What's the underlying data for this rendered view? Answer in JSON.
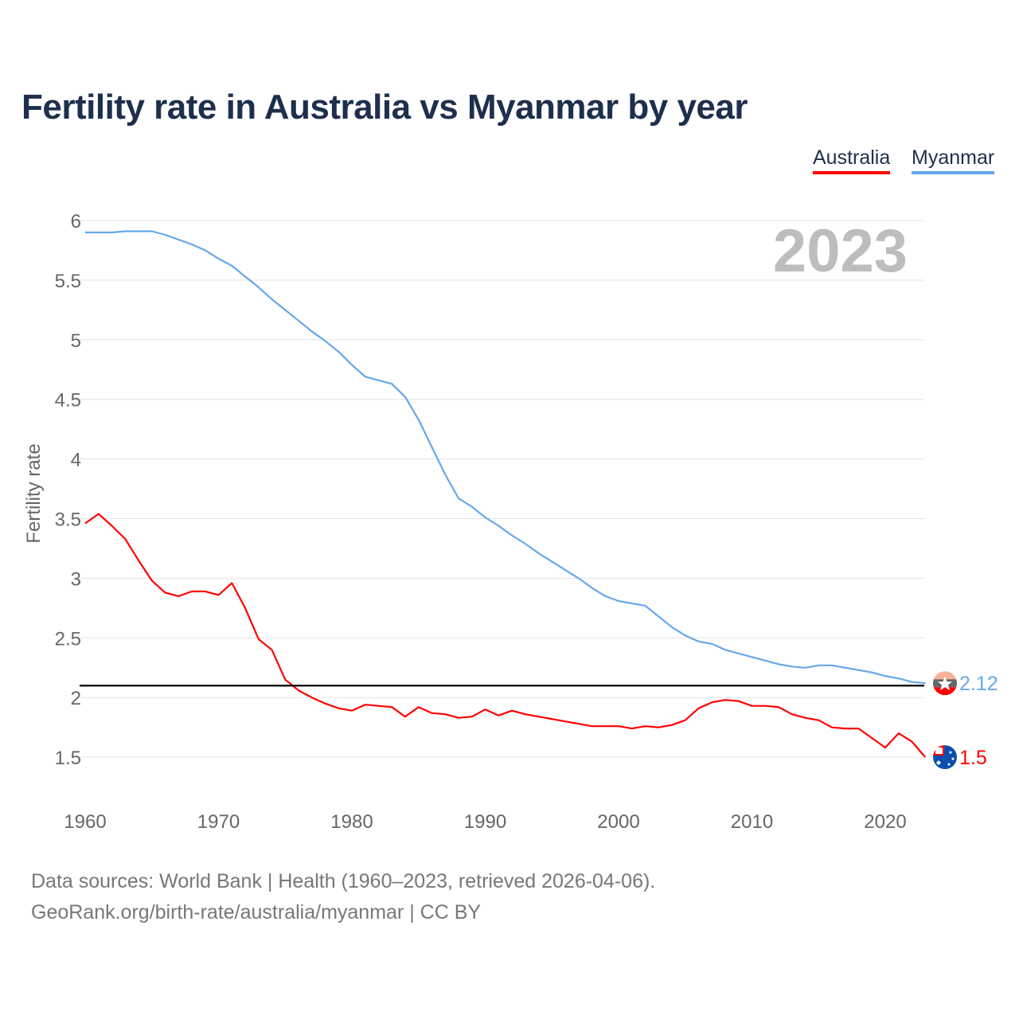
{
  "chart_data": {
    "type": "line",
    "title": "Fertility rate in Australia vs Myanmar by year",
    "xlabel": "",
    "ylabel": "Fertility rate",
    "year_label": "2023",
    "xlim": [
      1960,
      2023
    ],
    "ylim": [
      1.2,
      6.1
    ],
    "x_ticks": [
      1960,
      1970,
      1980,
      1990,
      2000,
      2010,
      2020
    ],
    "y_ticks": [
      1.5,
      2,
      2.5,
      3,
      3.5,
      4,
      4.5,
      5,
      5.5,
      6
    ],
    "y_tick_labels": [
      "1.5",
      "2",
      "2.5",
      "3",
      "3.5",
      "4",
      "4.5",
      "5",
      "5.5",
      "6"
    ],
    "grid": true,
    "legend_placement": "top-right",
    "reference_line": 2.1,
    "x": [
      1960,
      1961,
      1962,
      1963,
      1964,
      1965,
      1966,
      1967,
      1968,
      1969,
      1970,
      1971,
      1972,
      1973,
      1974,
      1975,
      1976,
      1977,
      1978,
      1979,
      1980,
      1981,
      1982,
      1983,
      1984,
      1985,
      1986,
      1987,
      1988,
      1989,
      1990,
      1991,
      1992,
      1993,
      1994,
      1995,
      1996,
      1997,
      1998,
      1999,
      2000,
      2001,
      2002,
      2003,
      2004,
      2005,
      2006,
      2007,
      2008,
      2009,
      2010,
      2011,
      2012,
      2013,
      2014,
      2015,
      2016,
      2017,
      2018,
      2019,
      2020,
      2021,
      2022,
      2023
    ],
    "series": [
      {
        "name": "Australia",
        "color": "#ff0000",
        "end_label": "1.5",
        "values": [
          3.46,
          3.54,
          3.44,
          3.33,
          3.15,
          2.98,
          2.88,
          2.85,
          2.89,
          2.89,
          2.86,
          2.96,
          2.75,
          2.49,
          2.4,
          2.15,
          2.06,
          2.0,
          1.95,
          1.91,
          1.89,
          1.94,
          1.93,
          1.92,
          1.84,
          1.92,
          1.87,
          1.86,
          1.83,
          1.84,
          1.9,
          1.85,
          1.89,
          1.86,
          1.84,
          1.82,
          1.8,
          1.78,
          1.76,
          1.76,
          1.76,
          1.74,
          1.76,
          1.75,
          1.77,
          1.81,
          1.91,
          1.96,
          1.98,
          1.97,
          1.93,
          1.93,
          1.92,
          1.86,
          1.83,
          1.81,
          1.75,
          1.74,
          1.74,
          1.66,
          1.58,
          1.7,
          1.63,
          1.5
        ]
      },
      {
        "name": "Myanmar",
        "color": "#64a8ec",
        "end_label": "2.12",
        "values": [
          5.9,
          5.9,
          5.9,
          5.91,
          5.91,
          5.91,
          5.88,
          5.84,
          5.8,
          5.75,
          5.68,
          5.62,
          5.53,
          5.44,
          5.34,
          5.25,
          5.16,
          5.07,
          4.99,
          4.9,
          4.79,
          4.69,
          4.66,
          4.63,
          4.52,
          4.33,
          4.1,
          3.87,
          3.67,
          3.6,
          3.51,
          3.44,
          3.36,
          3.29,
          3.21,
          3.14,
          3.07,
          3.0,
          2.92,
          2.85,
          2.81,
          2.79,
          2.77,
          2.68,
          2.59,
          2.52,
          2.47,
          2.45,
          2.4,
          2.37,
          2.34,
          2.31,
          2.28,
          2.26,
          2.25,
          2.27,
          2.27,
          2.25,
          2.23,
          2.21,
          2.18,
          2.16,
          2.13,
          2.12
        ]
      }
    ]
  },
  "footer": {
    "line1": "Data sources: World Bank | Health (1960–2023, retrieved 2026-04-06).",
    "line2": "GeoRank.org/birth-rate/australia/myanmar | CC BY"
  }
}
